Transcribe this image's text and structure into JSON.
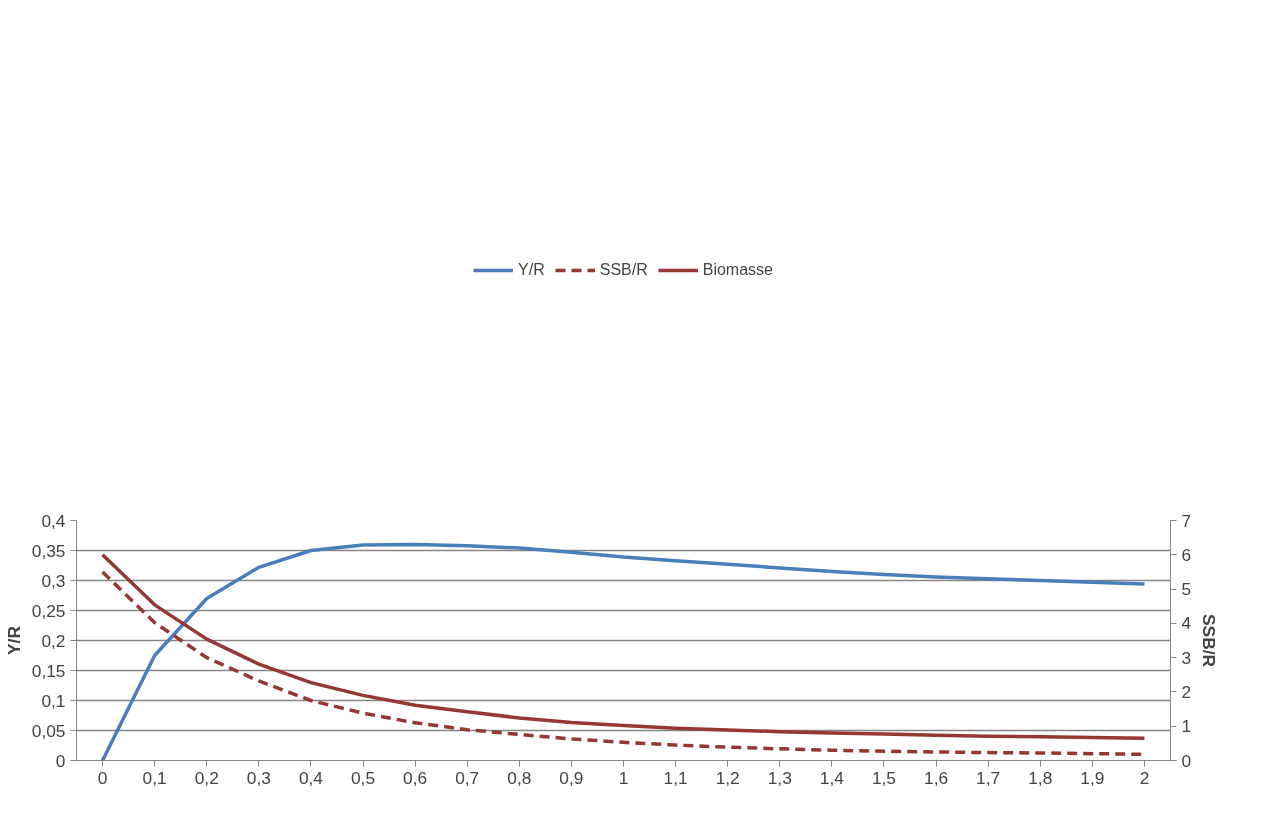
{
  "chart_data": {
    "type": "line",
    "ylabel": "Y/R",
    "y2label": "SSB/R",
    "categories": [
      "0",
      "0,1",
      "0,2",
      "0,3",
      "0,4",
      "0,5",
      "0,6",
      "0,7",
      "0,8",
      "0,9",
      "1",
      "1,1",
      "1,2",
      "1,3",
      "1,4",
      "1,5",
      "1,6",
      "1,7",
      "1,8",
      "1,9",
      "2"
    ],
    "series": [
      {
        "name": "Y/R",
        "color": "#4a7ebb",
        "line_style": "solid",
        "values": [
          0,
          0.175,
          0.27,
          0.322,
          0.35,
          0.359,
          0.36,
          0.358,
          0.354,
          0.347,
          0.339,
          0.333,
          0.327,
          0.321,
          0.315,
          0.31,
          0.306,
          0.303,
          0.3,
          0.297,
          0.294
        ]
      },
      {
        "name": "SSB/R",
        "color": "#953735",
        "line_style": "dashed",
        "axis": "y2",
        "values": [
          5.5,
          4.02,
          3.0,
          2.32,
          1.75,
          1.38,
          1.1,
          0.9,
          0.76,
          0.63,
          0.53,
          0.45,
          0.39,
          0.34,
          0.3,
          0.27,
          0.25,
          0.23,
          0.22,
          0.2,
          0.18
        ]
      },
      {
        "name": "Biomasse",
        "color": "#953735",
        "line_style": "solid",
        "axis": "y2",
        "values": [
          6.0,
          4.54,
          3.54,
          2.81,
          2.27,
          1.9,
          1.61,
          1.42,
          1.24,
          1.11,
          1.02,
          0.94,
          0.89,
          0.84,
          0.8,
          0.77,
          0.74,
          0.71,
          0.69,
          0.67,
          0.65
        ]
      }
    ],
    "ylim": [
      0,
      0.4
    ],
    "yticks": [
      {
        "value": 0,
        "label": "0"
      },
      {
        "value": 0.05,
        "label": "0,05"
      },
      {
        "value": 0.1,
        "label": "0,1"
      },
      {
        "value": 0.15,
        "label": "0,15"
      },
      {
        "value": 0.2,
        "label": "0,2"
      },
      {
        "value": 0.25,
        "label": "0,25"
      },
      {
        "value": 0.3,
        "label": "0,3"
      },
      {
        "value": 0.35,
        "label": "0,35"
      },
      {
        "value": 0.4,
        "label": "0,4"
      }
    ],
    "y2lim": [
      0,
      7
    ],
    "y2ticks": [
      0,
      1,
      2,
      3,
      4,
      5,
      6,
      7
    ],
    "grid": "y",
    "legend": "top",
    "marker": "none"
  }
}
